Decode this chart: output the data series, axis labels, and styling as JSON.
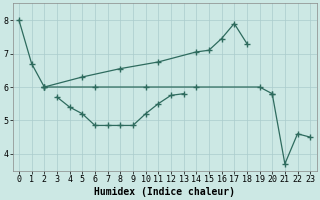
{
  "xlabel": "Humidex (Indice chaleur)",
  "background_color": "#cce8e4",
  "grid_color": "#aacccc",
  "line_color": "#2e6b5e",
  "xlim": [
    -0.5,
    23.5
  ],
  "ylim": [
    3.5,
    8.5
  ],
  "xticks": [
    0,
    1,
    2,
    3,
    4,
    5,
    6,
    7,
    8,
    9,
    10,
    11,
    12,
    13,
    14,
    15,
    16,
    17,
    18,
    19,
    20,
    21,
    22,
    23
  ],
  "yticks": [
    4,
    5,
    6,
    7,
    8
  ],
  "series": [
    {
      "x": [
        0,
        1,
        2
      ],
      "y": [
        8.0,
        6.7,
        6.0
      ]
    },
    {
      "x": [
        2,
        5,
        8,
        11,
        14,
        15,
        16,
        17,
        18
      ],
      "y": [
        6.0,
        6.3,
        6.55,
        6.75,
        7.05,
        7.1,
        7.45,
        7.9,
        7.3
      ]
    },
    {
      "x": [
        2,
        6,
        10,
        14,
        19,
        20
      ],
      "y": [
        6.0,
        6.0,
        6.0,
        6.0,
        6.0,
        5.8
      ]
    },
    {
      "x": [
        3,
        4,
        5,
        6,
        7,
        8,
        9,
        10,
        11,
        12,
        13
      ],
      "y": [
        5.7,
        5.4,
        5.2,
        4.85,
        4.85,
        4.85,
        4.85,
        5.2,
        5.5,
        5.75,
        5.8
      ]
    },
    {
      "x": [
        20,
        21,
        22,
        23
      ],
      "y": [
        5.8,
        3.7,
        4.6,
        4.5
      ]
    }
  ]
}
